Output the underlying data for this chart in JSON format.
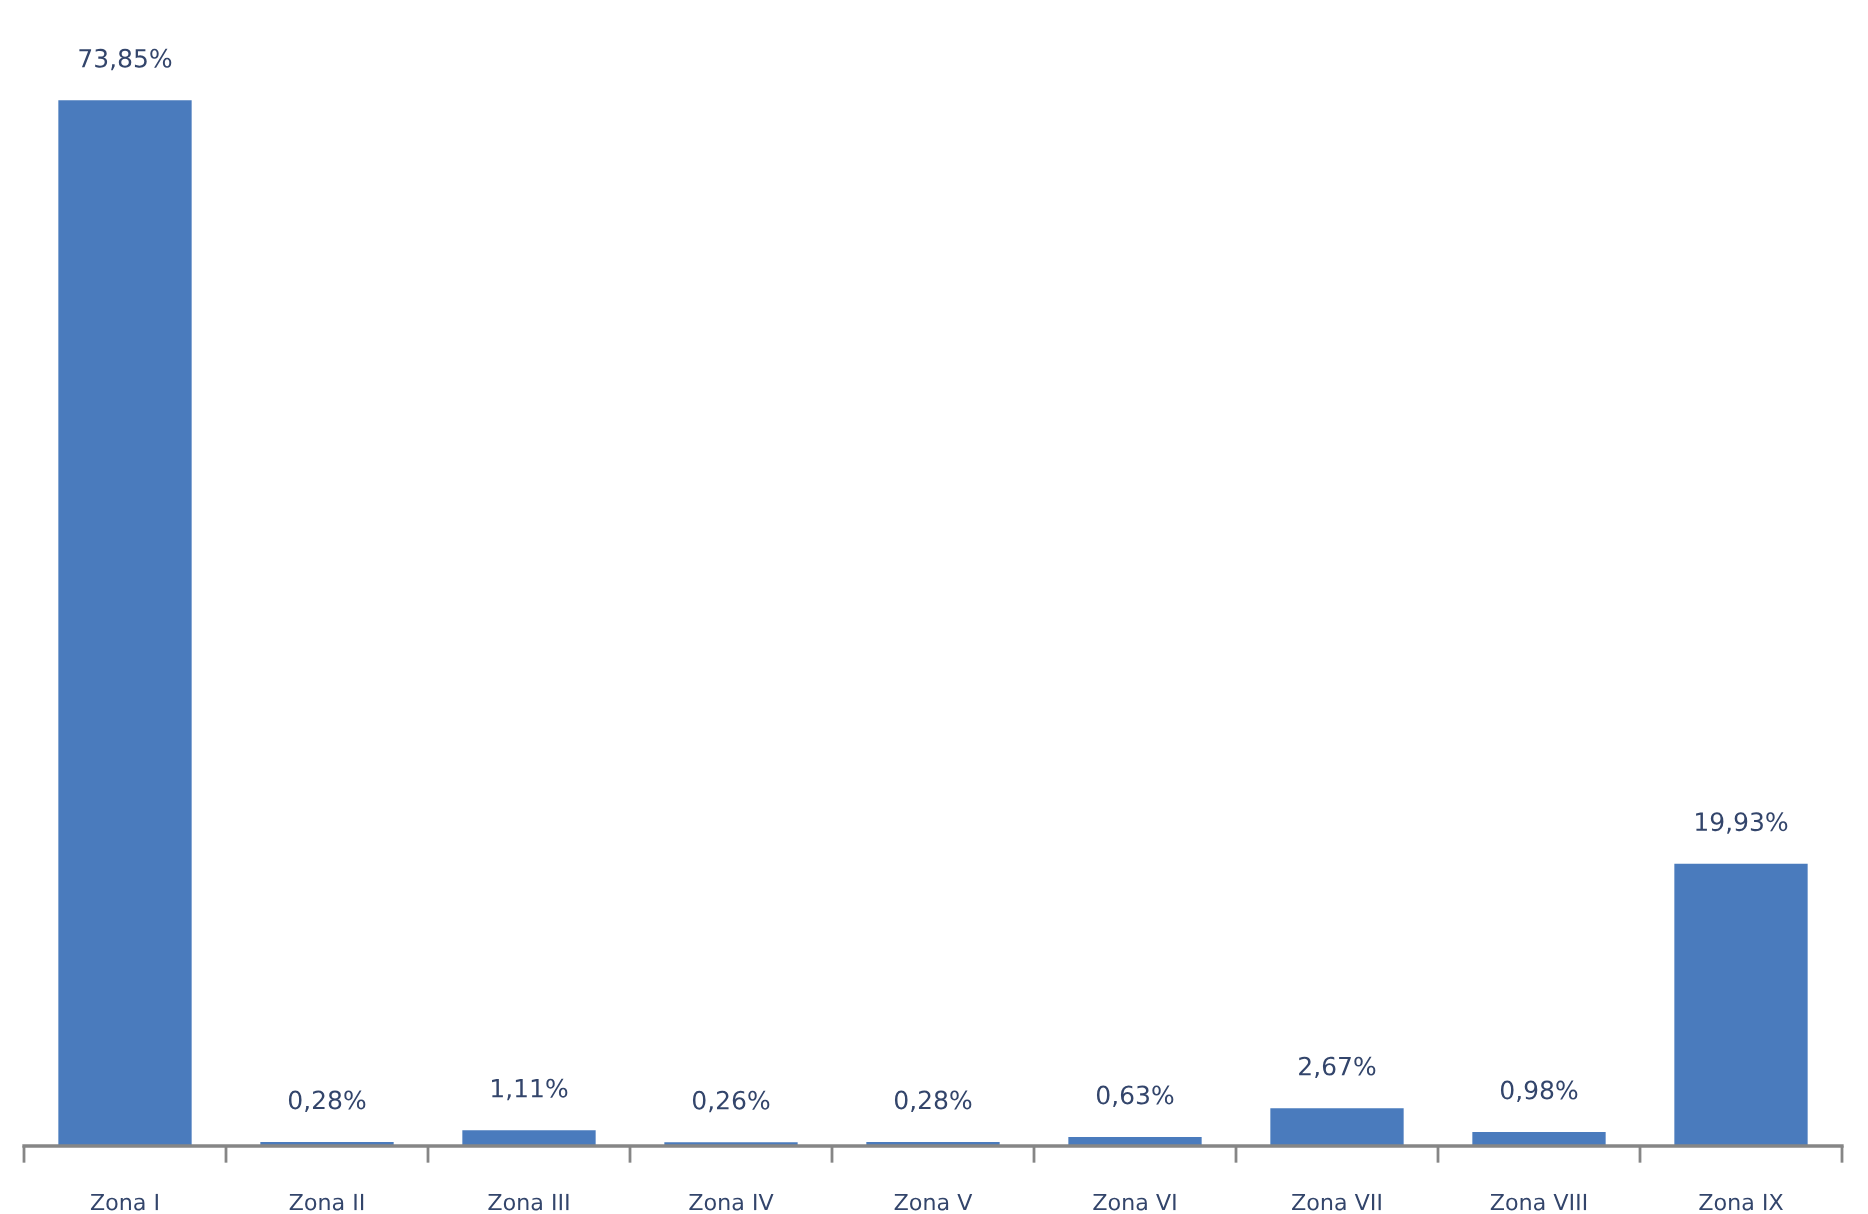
{
  "chart_data": {
    "type": "bar",
    "categories": [
      "Zona I",
      "Zona II",
      "Zona III",
      "Zona IV",
      "Zona V",
      "Zona VI",
      "Zona VII",
      "Zona VIII",
      "Zona IX"
    ],
    "values": [
      73.85,
      0.28,
      1.11,
      0.26,
      0.28,
      0.63,
      2.67,
      0.98,
      19.93
    ],
    "value_labels": [
      "73,85%",
      "0,28%",
      "1,11%",
      "0,26%",
      "0,28%",
      "0,63%",
      "2,67%",
      "0,98%",
      "19,93%"
    ],
    "color": "#4a7bbd",
    "grid": false,
    "legend": false
  }
}
